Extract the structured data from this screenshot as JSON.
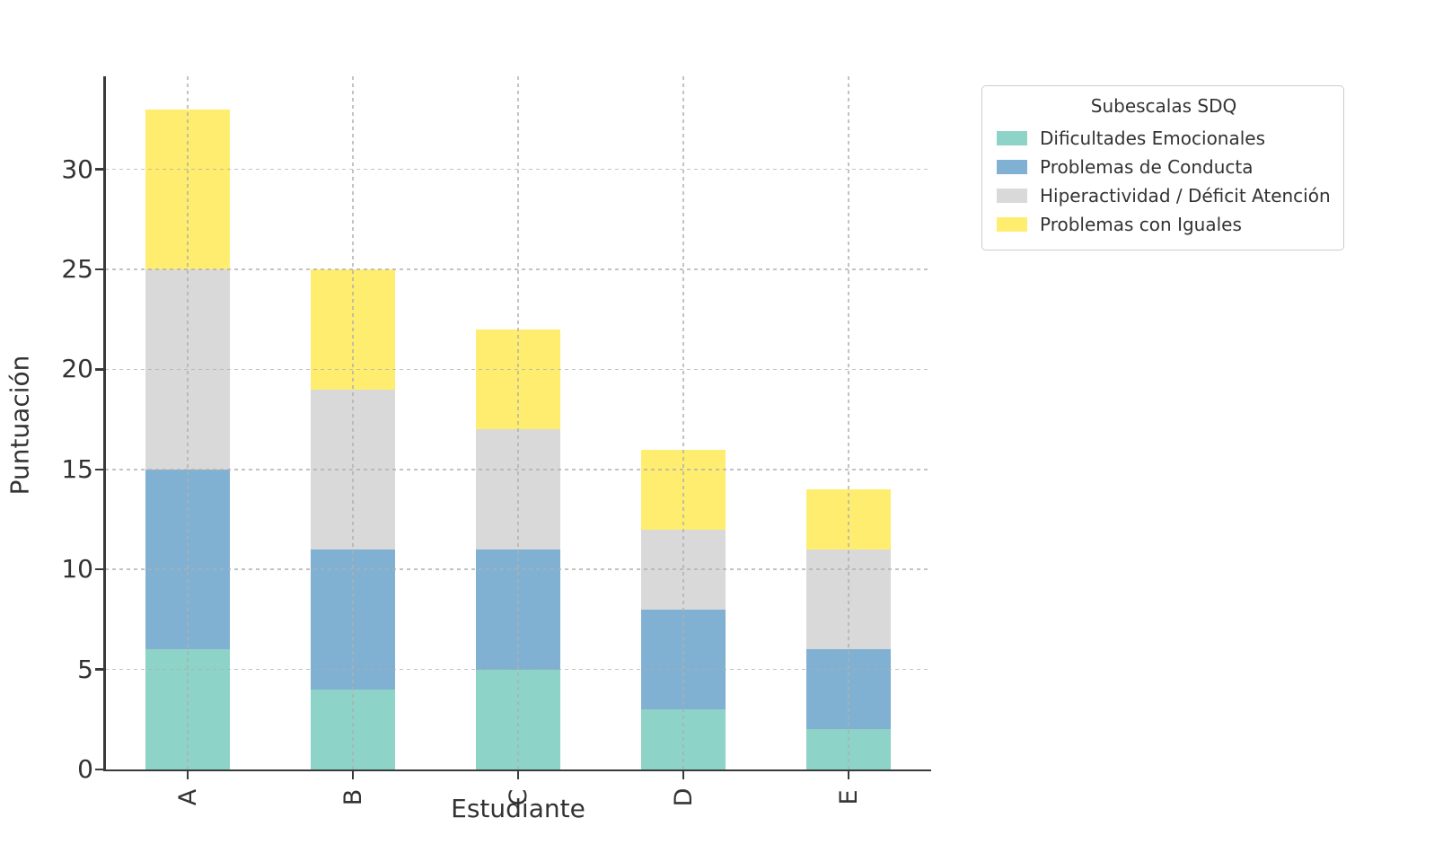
{
  "chart_data": {
    "type": "bar",
    "stacked": true,
    "title": "",
    "xlabel": "Estudiante",
    "ylabel": "Puntuación",
    "categories": [
      "A",
      "B",
      "C",
      "D",
      "E"
    ],
    "series": [
      {
        "name": "Dificultades Emocionales",
        "color": "#8dd3c7",
        "values": [
          6,
          4,
          5,
          3,
          2
        ]
      },
      {
        "name": "Problemas de Conducta",
        "color": "#80b1d3",
        "values": [
          9,
          7,
          6,
          5,
          4
        ]
      },
      {
        "name": "Hiperactividad / Déficit Atención",
        "color": "#d9d9d9",
        "values": [
          10,
          8,
          6,
          4,
          5
        ]
      },
      {
        "name": "Problemas con Iguales",
        "color": "#ffed6f",
        "values": [
          8,
          6,
          5,
          4,
          3
        ]
      }
    ],
    "stack_totals": [
      33,
      25,
      22,
      16,
      14
    ],
    "ylim": [
      0,
      34.65
    ],
    "yticks": [
      0,
      5,
      10,
      15,
      20,
      25,
      30
    ],
    "xtick_rotation_deg": 90,
    "grid": {
      "show": true,
      "style": "dashed",
      "axes": "both",
      "above_bars": true
    },
    "legend": {
      "title": "Subescalas SDQ",
      "position": "outside-upper-right"
    },
    "style": {
      "grid_color": "#c8c8c8",
      "spine_color": "#3a3a3a",
      "text_color": "#333333",
      "background": "#ffffff",
      "bar_width_fraction": 0.51
    }
  }
}
